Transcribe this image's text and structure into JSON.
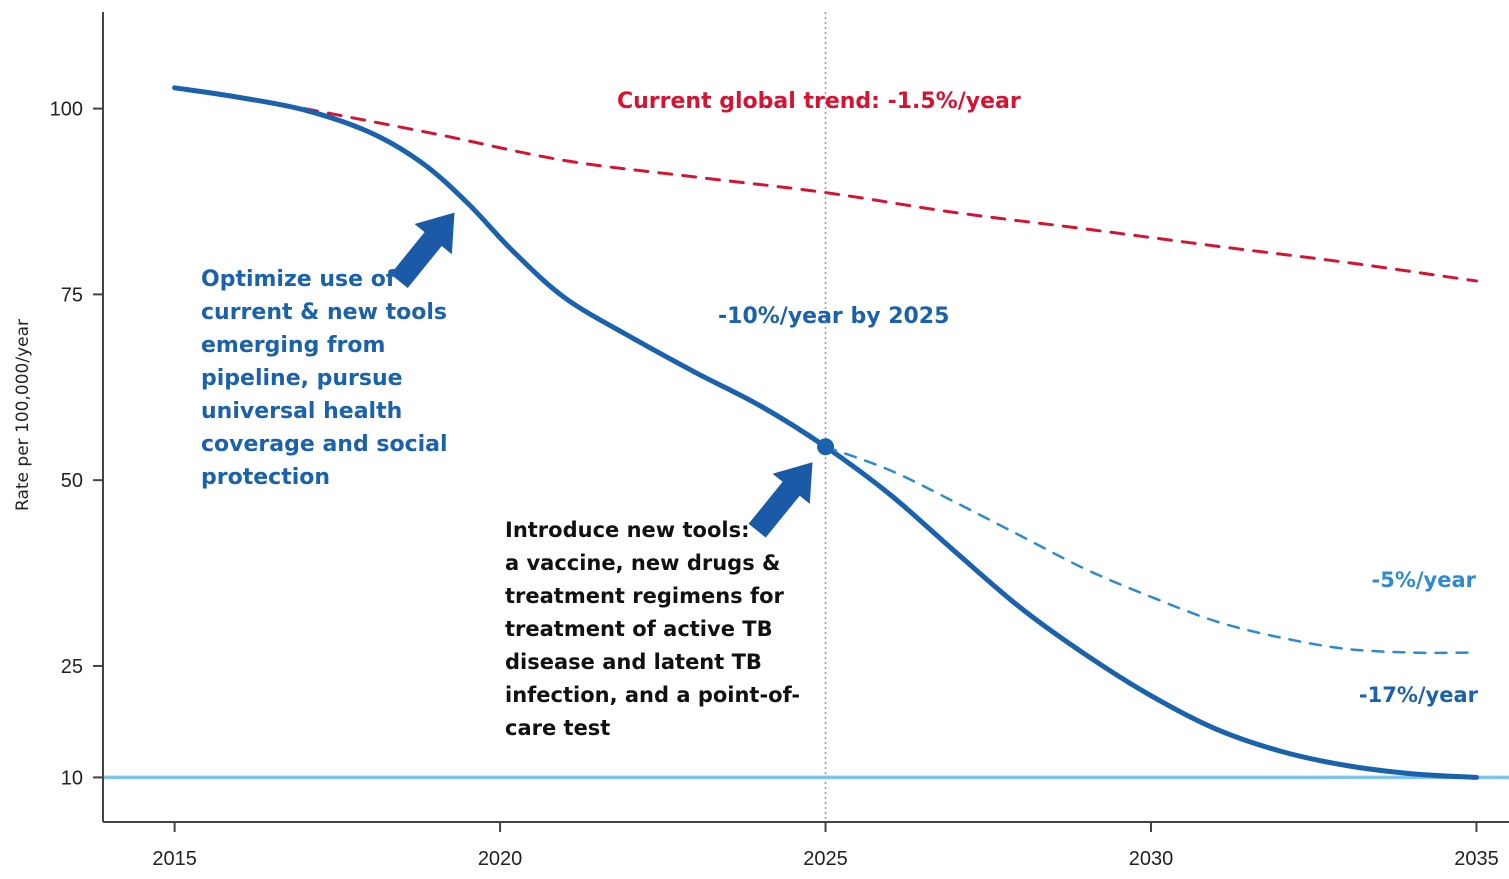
{
  "chart_data": {
    "type": "line",
    "title": "",
    "xlabel": "",
    "ylabel": "Rate per 100,000/year",
    "xlim": [
      2013.9,
      2035.5
    ],
    "ylim": [
      4,
      113
    ],
    "x_ticks": [
      2015,
      2020,
      2025,
      2030,
      2035
    ],
    "y_ticks": [
      10,
      25,
      50,
      75,
      100
    ],
    "grid": false,
    "legend": "none",
    "reference_lines": [
      {
        "axis": "x",
        "value": 2025,
        "style": "dotted",
        "color": "#999999"
      },
      {
        "axis": "y",
        "value": 10,
        "style": "solid",
        "color": "#7dc3ee"
      }
    ],
    "series": [
      {
        "key": "trend",
        "color": "#d41432",
        "style": "dashed",
        "x": [
          2017,
          2019,
          2021,
          2023,
          2025,
          2027,
          2029,
          2031,
          2033,
          2035
        ],
        "y": [
          100.0,
          96.6,
          93.0,
          90.8,
          88.7,
          86.0,
          83.8,
          81.5,
          79.3,
          76.8
        ]
      },
      {
        "key": "main",
        "color": "#1b62ad",
        "style": "solid",
        "x": [
          2015,
          2016,
          2017,
          2018,
          2018.8,
          2019.5,
          2020.2,
          2021,
          2022,
          2023,
          2024,
          2025,
          2026,
          2027,
          2028,
          2029,
          2030,
          2031,
          2032,
          2033,
          2034,
          2035
        ],
        "y": [
          102.8,
          101.5,
          99.8,
          96.8,
          92.7,
          87.3,
          80.8,
          74.5,
          69.3,
          64.5,
          60.0,
          54.5,
          48.0,
          40.3,
          32.8,
          26.5,
          21.0,
          16.5,
          13.5,
          11.6,
          10.5,
          10.0
        ]
      },
      {
        "key": "no_new_tools",
        "color": "#2e8ad1",
        "style": "dashed",
        "x": [
          2025,
          2026,
          2027,
          2028,
          2029,
          2030,
          2031,
          2032,
          2033,
          2034,
          2035
        ],
        "y": [
          54.5,
          51.3,
          47.0,
          42.5,
          38.0,
          34.3,
          31.0,
          28.8,
          27.3,
          26.8,
          26.8
        ]
      }
    ],
    "markers": [
      {
        "x": 2025,
        "y": 54.5,
        "color": "#1b62ad"
      }
    ],
    "annotations": {
      "trend_label": "Current global trend:  -1.5%/year",
      "optimize_lines": [
        "Optimize use of",
        "current & new tools",
        "emerging from",
        "pipeline, pursue",
        "universal health",
        "coverage and social",
        "protection"
      ],
      "by2025_label": "-10%/year by 2025",
      "introduce_lines": [
        "Introduce new tools:",
        "a vaccine, new drugs &",
        "treatment regimens for",
        "treatment of active TB",
        "disease and latent TB",
        "infection, and a point-of-",
        "care test"
      ],
      "five_pct_label": "-5%/year",
      "seventeen_pct_label": "-17%/year"
    },
    "arrows": [
      {
        "tip": [
          2019.3,
          86
        ]
      },
      {
        "tip": [
          2024.8,
          52.4
        ]
      }
    ]
  }
}
